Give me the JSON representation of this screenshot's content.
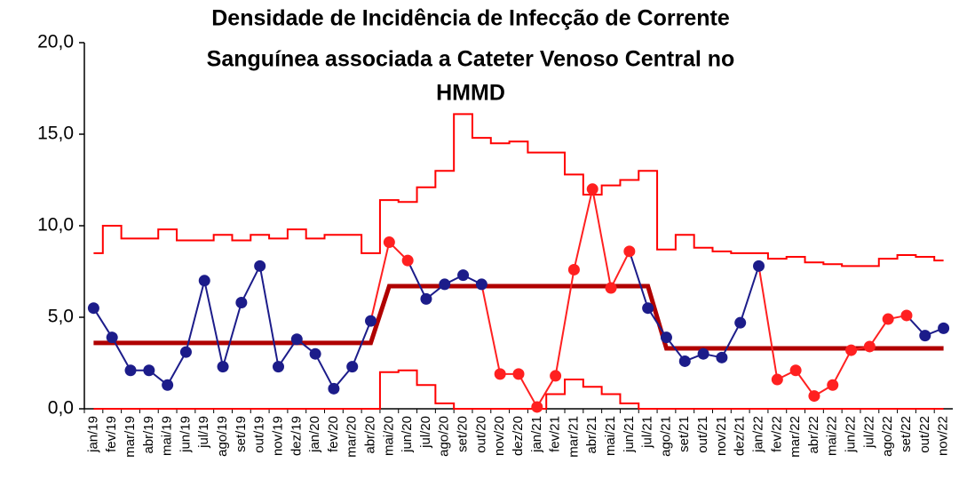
{
  "chart_data": {
    "type": "control",
    "title": [
      "Densidade de Incidência de Infecção de Corrente",
      "Sanguínea associada a Cateter Venoso Central no",
      "HMMD"
    ],
    "categories": [
      "jan/19",
      "fev/19",
      "mar/19",
      "abr/19",
      "mai/19",
      "jun/19",
      "jul/19",
      "ago/19",
      "set/19",
      "out/19",
      "nov/19",
      "dez/19",
      "jan/20",
      "fev/20",
      "mar/20",
      "abr/20",
      "mai/20",
      "jun/20",
      "jul/20",
      "ago/20",
      "set/20",
      "out/20",
      "nov/20",
      "dez/20",
      "jan/21",
      "fev/21",
      "mar/21",
      "abr/21",
      "mai/21",
      "jun/21",
      "jul/21",
      "ago/21",
      "set/21",
      "out/21",
      "nov/21",
      "dez/21",
      "jan/22",
      "fev/22",
      "mar/22",
      "abr/22",
      "mai/22",
      "jun/22",
      "jul/22",
      "ago/22",
      "set/22",
      "out/22",
      "nov/22"
    ],
    "values": [
      5.5,
      3.9,
      2.1,
      2.1,
      1.3,
      3.1,
      7.0,
      2.3,
      5.8,
      7.8,
      2.3,
      3.8,
      3.0,
      1.1,
      2.3,
      4.8,
      9.1,
      8.1,
      6.0,
      6.8,
      7.3,
      6.8,
      1.9,
      1.9,
      0.1,
      1.8,
      7.6,
      12.0,
      6.6,
      8.6,
      5.5,
      3.9,
      2.6,
      3.0,
      2.8,
      4.7,
      7.8,
      1.6,
      2.1,
      0.7,
      1.3,
      3.2,
      3.4,
      4.9,
      5.1,
      4.0,
      4.4
    ],
    "point_colors": [
      "#1c1c8a",
      "#1c1c8a",
      "#1c1c8a",
      "#1c1c8a",
      "#1c1c8a",
      "#1c1c8a",
      "#1c1c8a",
      "#1c1c8a",
      "#1c1c8a",
      "#1c1c8a",
      "#1c1c8a",
      "#1c1c8a",
      "#1c1c8a",
      "#1c1c8a",
      "#1c1c8a",
      "#1c1c8a",
      "#ff2020",
      "#ff2020",
      "#1c1c8a",
      "#1c1c8a",
      "#1c1c8a",
      "#1c1c8a",
      "#ff2020",
      "#ff2020",
      "#ff2020",
      "#ff2020",
      "#ff2020",
      "#ff2020",
      "#ff2020",
      "#ff2020",
      "#1c1c8a",
      "#1c1c8a",
      "#1c1c8a",
      "#1c1c8a",
      "#1c1c8a",
      "#1c1c8a",
      "#1c1c8a",
      "#ff2020",
      "#ff2020",
      "#ff2020",
      "#ff2020",
      "#ff2020",
      "#ff2020",
      "#ff2020",
      "#ff2020",
      "#1c1c8a",
      "#1c1c8a"
    ],
    "center": [
      3.6,
      3.6,
      3.6,
      3.6,
      3.6,
      3.6,
      3.6,
      3.6,
      3.6,
      3.6,
      3.6,
      3.6,
      3.6,
      3.6,
      3.6,
      3.6,
      6.7,
      6.7,
      6.7,
      6.7,
      6.7,
      6.7,
      6.7,
      6.7,
      6.7,
      6.7,
      6.7,
      6.7,
      6.7,
      6.7,
      6.7,
      3.3,
      3.3,
      3.3,
      3.3,
      3.3,
      3.3,
      3.3,
      3.3,
      3.3,
      3.3,
      3.3,
      3.3,
      3.3,
      3.3,
      3.3,
      3.3
    ],
    "center_color": "#b00000",
    "ucl": [
      8.5,
      10.0,
      9.3,
      9.3,
      9.8,
      9.2,
      9.2,
      9.5,
      9.2,
      9.5,
      9.3,
      9.8,
      9.3,
      9.5,
      9.5,
      8.5,
      11.4,
      11.3,
      12.1,
      13.0,
      16.1,
      14.8,
      14.5,
      14.6,
      14.0,
      14.0,
      12.8,
      11.7,
      12.2,
      12.5,
      13.0,
      8.7,
      9.5,
      8.8,
      8.6,
      8.5,
      8.5,
      8.2,
      8.3,
      8.0,
      7.9,
      7.8,
      7.8,
      8.2,
      8.4,
      8.3,
      8.1
    ],
    "lcl": [
      0,
      0,
      0,
      0,
      0,
      0,
      0,
      0,
      0,
      0,
      0,
      0,
      0,
      0,
      0,
      0,
      2.0,
      2.1,
      1.3,
      0.3,
      0,
      0,
      0,
      0,
      0,
      0.8,
      1.6,
      1.2,
      0.8,
      0.3,
      0,
      0,
      0,
      0,
      0,
      0,
      0,
      0,
      0,
      0,
      0,
      0,
      0,
      0,
      0,
      0,
      0
    ],
    "limit_color": "#ff0000",
    "ylim": [
      0,
      20
    ],
    "yticks": [
      {
        "value": 0,
        "label": "0,0"
      },
      {
        "value": 5,
        "label": "5,0"
      },
      {
        "value": 10,
        "label": "10,0"
      },
      {
        "value": 15,
        "label": "15,0"
      },
      {
        "value": 20,
        "label": "20,0"
      }
    ]
  }
}
